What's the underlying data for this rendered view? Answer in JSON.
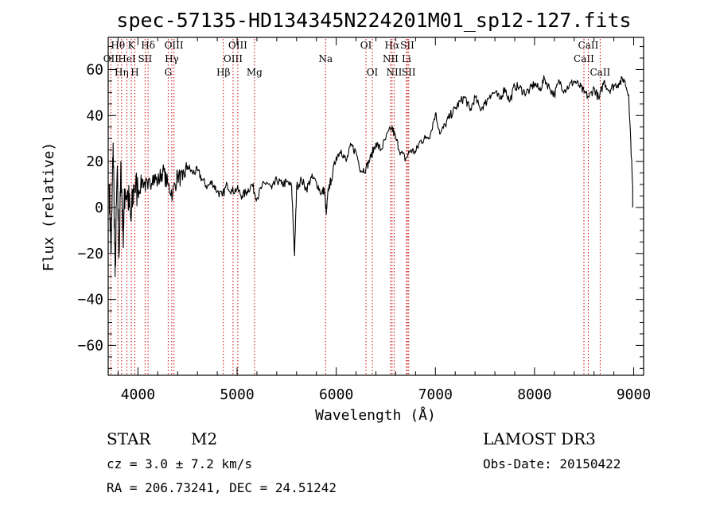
{
  "chart_data": {
    "type": "line",
    "title": "spec-57135-HD134345N224201M01_sp12-127.fits",
    "xlabel": "Wavelength (Å)",
    "ylabel": "Flux (relative)",
    "xlim": [
      3700,
      9100
    ],
    "ylim": [
      -73,
      74
    ],
    "xticks": [
      {
        "value": 4000,
        "label": "4000"
      },
      {
        "value": 5000,
        "label": "5000"
      },
      {
        "value": 6000,
        "label": "6000"
      },
      {
        "value": 7000,
        "label": "7000"
      },
      {
        "value": 8000,
        "label": "8000"
      },
      {
        "value": 9000,
        "label": "9000"
      }
    ],
    "yticks": [
      {
        "value": -60,
        "label": "−60"
      },
      {
        "value": -40,
        "label": "−40"
      },
      {
        "value": -20,
        "label": "−20"
      },
      {
        "value": 0,
        "label": "0"
      },
      {
        "value": 20,
        "label": "20"
      },
      {
        "value": 40,
        "label": "40"
      },
      {
        "value": 60,
        "label": "60"
      }
    ],
    "series": [
      {
        "name": "spectrum",
        "x": [
          3710,
          3730,
          3750,
          3770,
          3790,
          3810,
          3830,
          3850,
          3870,
          3900,
          3930,
          3960,
          4000,
          4050,
          4100,
          4150,
          4200,
          4250,
          4300,
          4350,
          4400,
          4450,
          4500,
          4550,
          4600,
          4650,
          4700,
          4750,
          4800,
          4850,
          4900,
          4950,
          5000,
          5050,
          5100,
          5150,
          5200,
          5250,
          5300,
          5350,
          5400,
          5450,
          5500,
          5550,
          5580,
          5600,
          5650,
          5700,
          5750,
          5800,
          5850,
          5880,
          5900,
          5920,
          5950,
          6000,
          6050,
          6100,
          6150,
          6200,
          6250,
          6300,
          6350,
          6400,
          6450,
          6500,
          6560,
          6600,
          6650,
          6700,
          6750,
          6800,
          6850,
          6900,
          6950,
          7000,
          7050,
          7100,
          7150,
          7200,
          7250,
          7300,
          7350,
          7400,
          7450,
          7500,
          7550,
          7600,
          7650,
          7700,
          7750,
          7800,
          7850,
          7900,
          7950,
          8000,
          8050,
          8100,
          8150,
          8200,
          8250,
          8300,
          8350,
          8400,
          8450,
          8500,
          8550,
          8600,
          8650,
          8700,
          8750,
          8800,
          8850,
          8900,
          8950,
          8990
        ],
        "values": [
          10,
          -20,
          28,
          -30,
          15,
          -20,
          18,
          -12,
          8,
          5,
          -6,
          10,
          7,
          12,
          8,
          14,
          11,
          16,
          10,
          6,
          14,
          12,
          18,
          15,
          16,
          12,
          9,
          11,
          7,
          5,
          10,
          7,
          8,
          5,
          7,
          10,
          4,
          9,
          11,
          8,
          12,
          10,
          11,
          9,
          -21,
          9,
          12,
          8,
          13,
          11,
          6,
          8,
          -3,
          8,
          12,
          22,
          25,
          20,
          27,
          24,
          16,
          17,
          22,
          28,
          25,
          30,
          35,
          30,
          24,
          21,
          25,
          24,
          29,
          30,
          32,
          41,
          32,
          36,
          40,
          43,
          46,
          48,
          42,
          48,
          43,
          45,
          49,
          50,
          47,
          52,
          46,
          53,
          52,
          50,
          51,
          54,
          51,
          56,
          52,
          49,
          55,
          51,
          53,
          55,
          53,
          50,
          48,
          52,
          47,
          55,
          51,
          53,
          54,
          56,
          49,
          9
        ]
      }
    ],
    "spectral_lines": [
      {
        "label": "Hθ",
        "wl": 3798,
        "row": 1
      },
      {
        "label": "OII",
        "wl": 3727,
        "row": 2
      },
      {
        "label": "Hη",
        "wl": 3835,
        "row": 3
      },
      {
        "label": "HeI",
        "wl": 3889,
        "row": 2
      },
      {
        "label": "K",
        "wl": 3934,
        "row": 1
      },
      {
        "label": "H",
        "wl": 3969,
        "row": 3
      },
      {
        "label": "SII",
        "wl": 4072,
        "row": 2
      },
      {
        "label": "Hδ",
        "wl": 4102,
        "row": 1
      },
      {
        "label": "Hγ",
        "wl": 4341,
        "row": 2
      },
      {
        "label": "G",
        "wl": 4305,
        "row": 3
      },
      {
        "label": "OIII",
        "wl": 4363,
        "row": 1
      },
      {
        "label": "Hβ",
        "wl": 4861,
        "row": 3
      },
      {
        "label": "OIII",
        "wl": 4959,
        "row": 2
      },
      {
        "label": "OIII",
        "wl": 5007,
        "row": 1
      },
      {
        "label": "Mg",
        "wl": 5175,
        "row": 3
      },
      {
        "label": "Na",
        "wl": 5893,
        "row": 2
      },
      {
        "label": "OI",
        "wl": 6300,
        "row": 1
      },
      {
        "label": "OI",
        "wl": 6364,
        "row": 3
      },
      {
        "label": "Hα",
        "wl": 6563,
        "row": 1
      },
      {
        "label": "NII",
        "wl": 6548,
        "row": 2
      },
      {
        "label": "NII",
        "wl": 6584,
        "row": 3
      },
      {
        "label": "Li",
        "wl": 6708,
        "row": 2
      },
      {
        "label": "SII",
        "wl": 6717,
        "row": 1
      },
      {
        "label": "SII",
        "wl": 6731,
        "row": 3
      },
      {
        "label": "CaII",
        "wl": 8498,
        "row": 2
      },
      {
        "label": "CaII",
        "wl": 8542,
        "row": 1
      },
      {
        "label": "CaII",
        "wl": 8662,
        "row": 3
      }
    ],
    "line_color": "#cc0000"
  },
  "footer": {
    "class_label": "STAR",
    "subclass": "M2",
    "survey": "LAMOST DR3",
    "cz": "cz = 3.0 ± 7.2 km/s",
    "obs_date": "Obs-Date: 20150422",
    "radec": "RA = 206.73241, DEC =  24.51242"
  }
}
